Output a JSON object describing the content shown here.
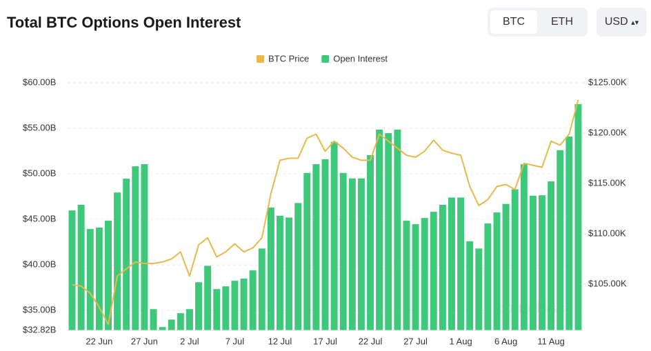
{
  "title": "Total BTC Options Open Interest",
  "toggle": [
    "BTC",
    "ETH"
  ],
  "currency": "USD",
  "chart_data": {
    "type": "bar-line",
    "watermark": "coinglass",
    "categories": [
      null,
      null,
      null,
      "22 Jun",
      null,
      null,
      null,
      null,
      "27 Jun",
      null,
      null,
      null,
      null,
      "2 Jul",
      null,
      null,
      null,
      null,
      "7 Jul",
      null,
      null,
      null,
      null,
      "12 Jul",
      null,
      null,
      null,
      null,
      "17 Jul",
      null,
      null,
      null,
      null,
      "22 Jul",
      null,
      null,
      null,
      null,
      "27 Jul",
      null,
      null,
      null,
      null,
      "1 Aug",
      null,
      null,
      null,
      null,
      "6 Aug",
      null,
      null,
      null,
      null,
      "11 Aug",
      null,
      null,
      null
    ],
    "series": [
      {
        "name": "BTC Price",
        "color": "#e8b84a",
        "axis": "y2",
        "kind": "line",
        "values": [
          104.93,
          104.8,
          104.1,
          102.7,
          101.0,
          105.8,
          106.5,
          107.2,
          107.05,
          107.05,
          107.2,
          107.5,
          108.2,
          105.8,
          108.9,
          109.6,
          107.7,
          108.2,
          109.0,
          108.2,
          108.6,
          109.6,
          114.0,
          117.3,
          117.5,
          117.5,
          119.5,
          119.9,
          118.2,
          119.2,
          118.5,
          117.6,
          117.3,
          117.3,
          119.9,
          119.2,
          118.5,
          117.8,
          117.6,
          118.2,
          119.3,
          118.3,
          118.0,
          117.8,
          114.7,
          112.8,
          113.4,
          114.7,
          114.9,
          114.4,
          117.0,
          116.8,
          116.6,
          119.2,
          118.8,
          119.9,
          123.3
        ]
      },
      {
        "name": "Open Interest",
        "color": "#3ec97a",
        "axis": "y",
        "kind": "bar",
        "values": [
          45.98,
          46.6,
          43.94,
          44.1,
          44.85,
          47.95,
          49.47,
          50.83,
          51.06,
          35.15,
          33.18,
          34.0,
          34.7,
          35.15,
          38.1,
          39.9,
          37.35,
          37.65,
          38.26,
          38.5,
          39.4,
          41.8,
          46.3,
          45.4,
          45.2,
          46.8,
          50.1,
          51.06,
          51.6,
          53.5,
          50.1,
          49.5,
          49.5,
          52.05,
          54.85,
          54.47,
          54.85,
          44.85,
          44.47,
          45.15,
          45.83,
          46.6,
          47.4,
          47.4,
          42.6,
          41.8,
          44.55,
          45.76,
          46.7,
          48.3,
          51.06,
          47.6,
          47.65,
          49.17,
          52.6,
          54.1,
          57.65
        ]
      }
    ],
    "ylim": [
      32.82,
      60
    ],
    "yticks": [
      {
        "value": 32.82,
        "label": "$32.82B"
      },
      {
        "value": 35,
        "label": "$35.00B"
      },
      {
        "value": 40,
        "label": "$40.00B"
      },
      {
        "value": 45,
        "label": "$45.00B"
      },
      {
        "value": 50,
        "label": "$50.00B"
      },
      {
        "value": 55,
        "label": "$55.00B"
      },
      {
        "value": 60,
        "label": "$60.00B"
      }
    ],
    "y2lim": [
      100.41,
      125
    ],
    "y2ticks": [
      {
        "value": 105,
        "label": "$105.00K"
      },
      {
        "value": 110,
        "label": "$110.00K"
      },
      {
        "value": 115,
        "label": "$115.00K"
      },
      {
        "value": 120,
        "label": "$120.00K"
      },
      {
        "value": 125,
        "label": "$125.00K"
      }
    ],
    "grid": true,
    "legend": "top"
  }
}
